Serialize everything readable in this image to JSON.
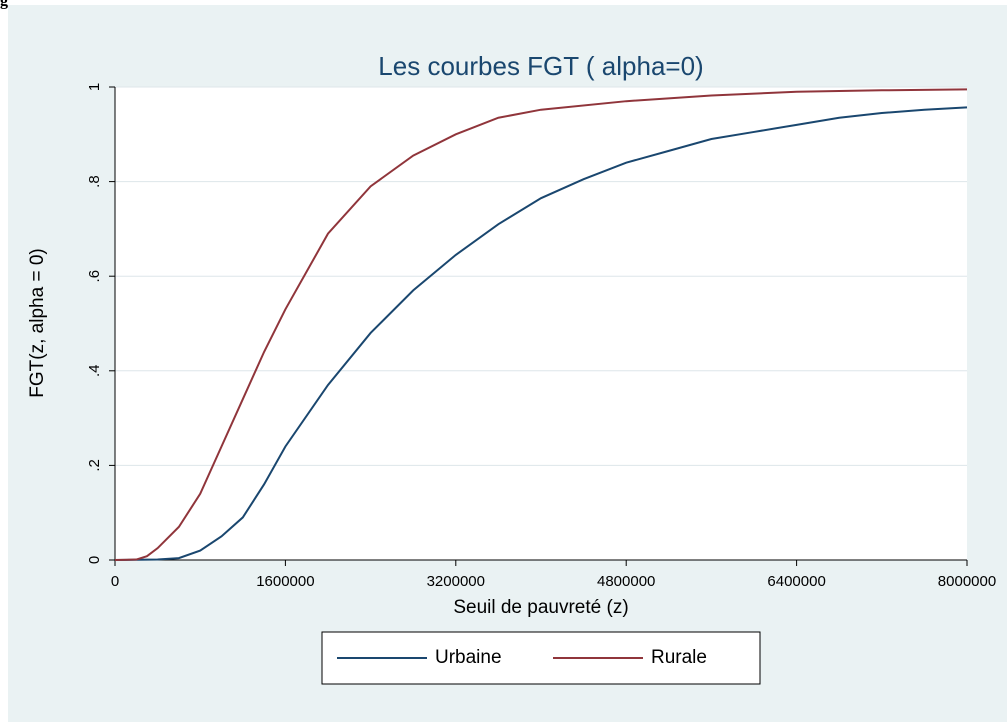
{
  "header_fragment": "g",
  "chart_data": {
    "type": "line",
    "title": "Les courbes FGT ( alpha=0)",
    "xlabel": "Seuil de pauvreté (z)",
    "ylabel": "FGT(z, alpha = 0)",
    "xlim": [
      0,
      8000000
    ],
    "ylim": [
      0,
      1
    ],
    "xticks": [
      0,
      1600000,
      3200000,
      4800000,
      6400000,
      8000000
    ],
    "yticks": [
      0,
      {
        "value": 0.2,
        "label": ".2"
      },
      {
        "value": 0.4,
        "label": ".4"
      },
      {
        "value": 0.6,
        "label": ".6"
      },
      {
        "value": 0.8,
        "label": ".8"
      },
      1
    ],
    "grid": true,
    "legend": "bottom",
    "series": [
      {
        "name": "Urbaine",
        "color": "#1a476f",
        "x": [
          0,
          400000,
          600000,
          800000,
          1000000,
          1200000,
          1400000,
          1600000,
          2000000,
          2400000,
          2800000,
          3200000,
          3600000,
          4000000,
          4400000,
          4800000,
          5200000,
          5600000,
          6000000,
          6400000,
          6800000,
          7200000,
          7600000,
          8000000
        ],
        "values": [
          0,
          0.001,
          0.004,
          0.02,
          0.05,
          0.09,
          0.16,
          0.24,
          0.37,
          0.48,
          0.57,
          0.645,
          0.71,
          0.765,
          0.805,
          0.84,
          0.865,
          0.89,
          0.905,
          0.92,
          0.935,
          0.945,
          0.952,
          0.957
        ]
      },
      {
        "name": "Rurale",
        "color": "#90353b",
        "x": [
          0,
          200000,
          300000,
          400000,
          600000,
          800000,
          1000000,
          1200000,
          1400000,
          1600000,
          2000000,
          2400000,
          2800000,
          3200000,
          3600000,
          4000000,
          4800000,
          5600000,
          6400000,
          7200000,
          8000000
        ],
        "values": [
          0,
          0.001,
          0.008,
          0.025,
          0.07,
          0.14,
          0.24,
          0.34,
          0.44,
          0.53,
          0.69,
          0.79,
          0.855,
          0.9,
          0.935,
          0.952,
          0.97,
          0.982,
          0.99,
          0.993,
          0.995
        ]
      }
    ]
  }
}
